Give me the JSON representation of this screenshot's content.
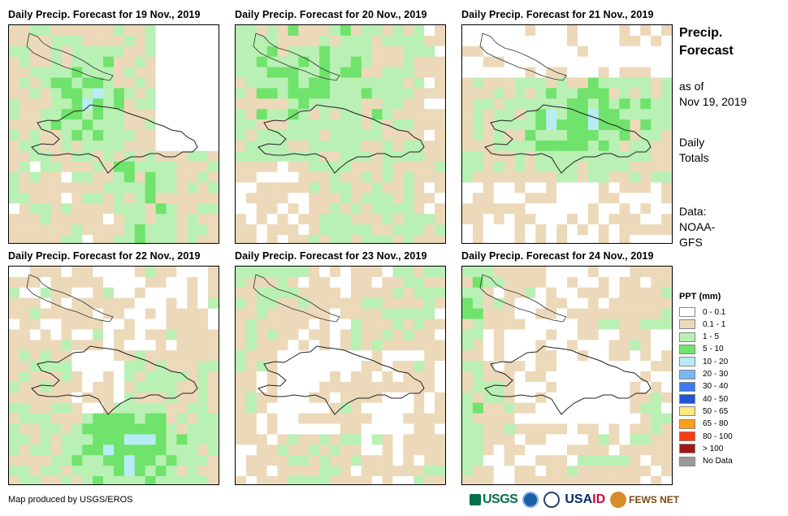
{
  "panels": [
    {
      "title": "Daily Precip. Forecast for 19 Nov., 2019",
      "seed": 19
    },
    {
      "title": "Daily Precip. Forecast for 20 Nov., 2019",
      "seed": 20
    },
    {
      "title": "Daily Precip. Forecast for 21 Nov., 2019",
      "seed": 21
    },
    {
      "title": "Daily Precip. Forecast for 22 Nov., 2019",
      "seed": 22
    },
    {
      "title": "Daily Precip. Forecast for 23 Nov., 2019",
      "seed": 23
    },
    {
      "title": "Daily Precip. Forecast for 24 Nov., 2019",
      "seed": 24
    }
  ],
  "sidebar": {
    "title_line1": "Precip.",
    "title_line2": "Forecast",
    "asof_line1": "as of",
    "asof_line2": "Nov 19, 2019",
    "totals_line1": "Daily",
    "totals_line2": "Totals",
    "data_line1": "Data:",
    "data_line2": "NOAA-",
    "data_line3": "GFS"
  },
  "legend": {
    "title": "PPT (mm)",
    "items": [
      {
        "label": "0 - 0.1",
        "color": "#ffffff"
      },
      {
        "label": "0.1 - 1",
        "color": "#ecd9b9"
      },
      {
        "label": "1 - 5",
        "color": "#b9f0b4"
      },
      {
        "label": "5 - 10",
        "color": "#6fe36b"
      },
      {
        "label": "10 - 20",
        "color": "#b7ecf6"
      },
      {
        "label": "20 - 30",
        "color": "#75b8f5"
      },
      {
        "label": "30 - 40",
        "color": "#3c7bef"
      },
      {
        "label": "40 - 50",
        "color": "#1e56d6"
      },
      {
        "label": "50 - 65",
        "color": "#ffe680"
      },
      {
        "label": "65 - 80",
        "color": "#ff9f1c"
      },
      {
        "label": "80 - 100",
        "color": "#ff3a12"
      },
      {
        "label": "> 100",
        "color": "#a31616"
      },
      {
        "label": "No Data",
        "color": "#999999"
      }
    ]
  },
  "footer": {
    "credit": "Map produced by USGS/EROS",
    "logo_usgs": "USGS",
    "logo_usaid_a": "USA",
    "logo_usaid_b": "ID",
    "logo_fews": "FEWS NET"
  }
}
